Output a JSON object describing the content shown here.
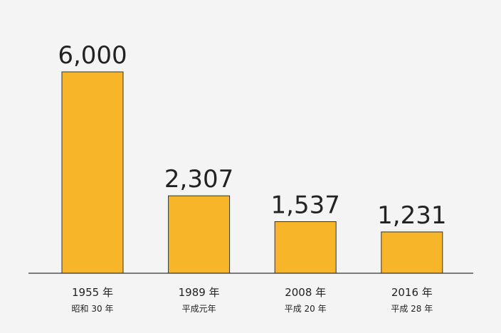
{
  "chart_data": {
    "type": "bar",
    "categories": [
      "1955 年",
      "1989 年",
      "2008 年",
      "2016 年"
    ],
    "category_sublabels": [
      "昭和 30 年",
      "平成元年",
      "平成 20 年",
      "平成 28 年"
    ],
    "values": [
      6000,
      2307,
      1537,
      1231
    ],
    "value_labels": [
      "6,000",
      "2,307",
      "1,537",
      "1,231"
    ],
    "color": "#f7b52a"
  }
}
